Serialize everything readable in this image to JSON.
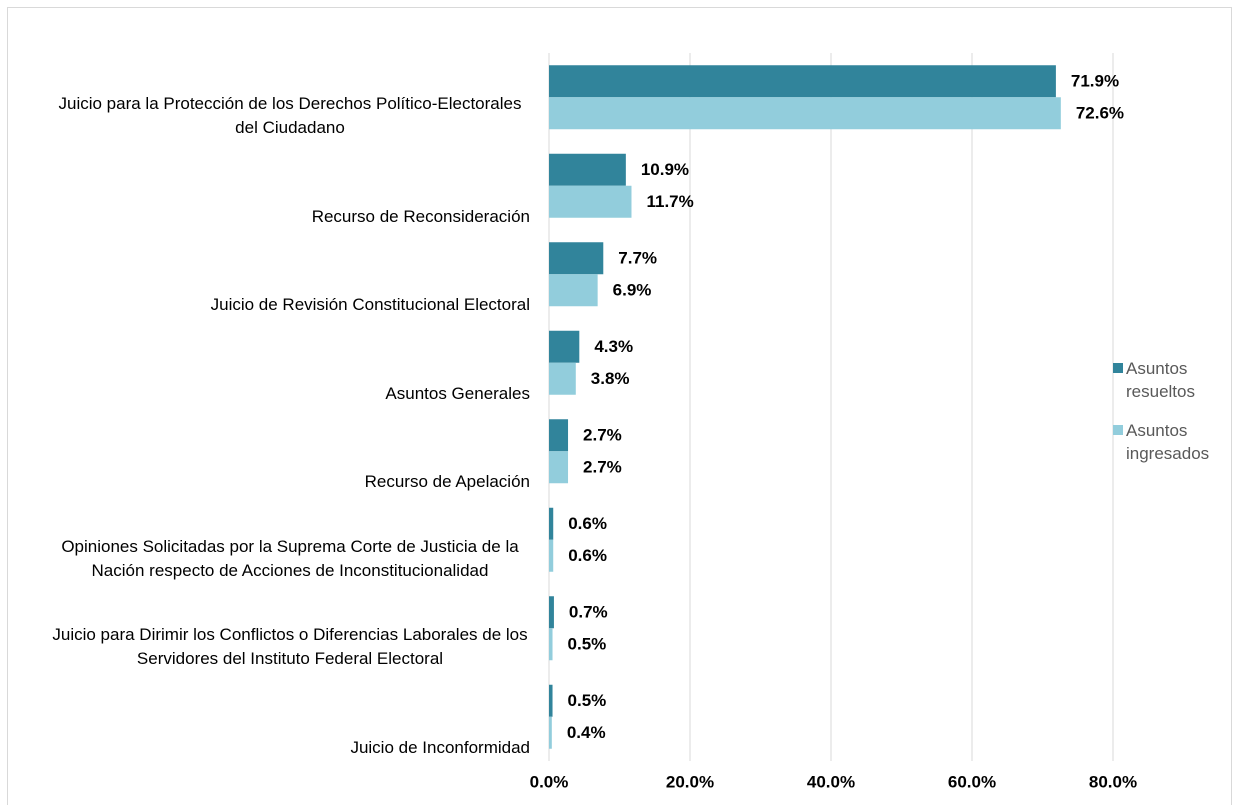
{
  "chart_data": {
    "type": "bar",
    "orientation": "horizontal",
    "categories": [
      "Juicio para la Protección de los Derechos Político-Electorales del Ciudadano",
      "Recurso de Reconsideración",
      "Juicio de Revisión Constitucional Electoral",
      "Asuntos Generales",
      "Recurso de Apelación",
      "Opiniones Solicitadas por la Suprema Corte de Justicia de la Nación respecto de Acciones de Inconstitucionalidad",
      "Juicio para Dirimir los Conflictos o Diferencias Laborales de los Servidores del Instituto Federal Electoral",
      "Juicio de Inconformidad"
    ],
    "series": [
      {
        "name": "Asuntos resueltos",
        "color": "#31849b",
        "values": [
          71.9,
          10.9,
          7.7,
          4.3,
          2.7,
          0.6,
          0.7,
          0.5
        ],
        "value_labels": [
          "71.9%",
          "10.9%",
          "7.7%",
          "4.3%",
          "2.7%",
          "0.6%",
          "0.7%",
          "0.5%"
        ]
      },
      {
        "name": "Asuntos ingresados",
        "color": "#92cddc",
        "values": [
          72.6,
          11.7,
          6.9,
          3.8,
          2.7,
          0.6,
          0.5,
          0.4
        ],
        "value_labels": [
          "72.6%",
          "11.7%",
          "6.9%",
          "3.8%",
          "2.7%",
          "0.6%",
          "0.5%",
          "0.4%"
        ]
      }
    ],
    "xlim": [
      0,
      80
    ],
    "xticks": [
      {
        "value": 0,
        "label": "0.0%"
      },
      {
        "value": 20,
        "label": "20.0%"
      },
      {
        "value": 40,
        "label": "40.0%"
      },
      {
        "value": 60,
        "label": "60.0%"
      },
      {
        "value": 80,
        "label": "80.0%"
      }
    ],
    "grid": true,
    "legend": "right"
  }
}
